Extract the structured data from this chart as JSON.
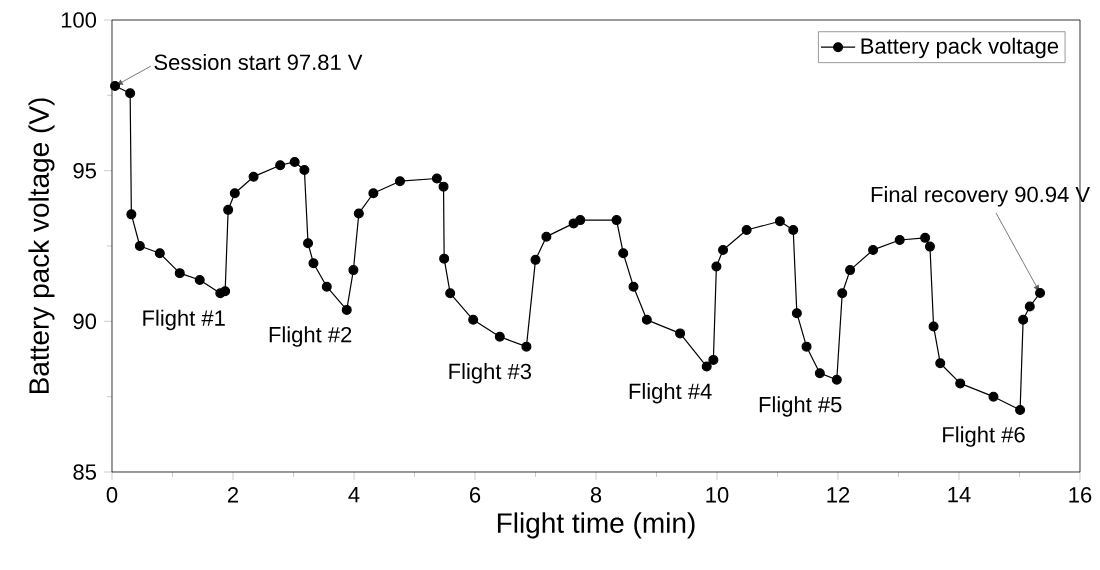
{
  "chart_data": {
    "type": "line",
    "xlabel": "Flight time (min)",
    "ylabel": "Battery pack voltage (V)",
    "xlim": [
      0,
      16
    ],
    "ylim": [
      85,
      100
    ],
    "xticks": [
      0,
      2,
      4,
      6,
      8,
      10,
      12,
      14,
      16
    ],
    "yticks": [
      85,
      90,
      95,
      100
    ],
    "legend": "top right",
    "marker": "circle",
    "line_style": "solid",
    "grid": false,
    "x": [
      0.05,
      0.3,
      0.32,
      0.46,
      0.79,
      1.12,
      1.45,
      1.79,
      1.87,
      1.92,
      2.03,
      2.34,
      2.78,
      3.02,
      3.18,
      3.24,
      3.33,
      3.55,
      3.88,
      3.99,
      4.08,
      4.32,
      4.76,
      5.37,
      5.48,
      5.49,
      5.59,
      5.97,
      6.41,
      6.85,
      7.0,
      7.18,
      7.63,
      7.74,
      8.34,
      8.45,
      8.62,
      8.84,
      9.39,
      9.83,
      9.94,
      9.99,
      10.1,
      10.49,
      11.04,
      11.26,
      11.32,
      11.48,
      11.7,
      11.98,
      12.07,
      12.2,
      12.58,
      13.02,
      13.44,
      13.52,
      13.58,
      13.69,
      14.02,
      14.57,
      15.01,
      15.06,
      15.17,
      15.34
    ],
    "series": [
      {
        "name": "Battery pack voltage",
        "color": "#000000",
        "values": [
          97.81,
          97.57,
          93.55,
          92.5,
          92.26,
          91.6,
          91.37,
          90.93,
          91.0,
          93.7,
          94.25,
          94.8,
          95.18,
          95.29,
          95.02,
          92.59,
          91.93,
          91.15,
          90.38,
          91.7,
          93.58,
          94.25,
          94.65,
          94.74,
          94.47,
          92.08,
          90.93,
          90.05,
          89.49,
          89.16,
          92.04,
          92.81,
          93.25,
          93.36,
          93.36,
          92.26,
          91.15,
          90.05,
          89.6,
          88.5,
          88.72,
          91.82,
          92.37,
          93.03,
          93.32,
          93.03,
          90.27,
          89.16,
          88.28,
          88.06,
          90.93,
          91.7,
          92.37,
          92.7,
          92.77,
          92.48,
          89.83,
          88.61,
          87.94,
          87.5,
          87.06,
          90.05,
          90.49,
          90.94
        ]
      }
    ],
    "annotations": [
      {
        "text": "Session start 97.81 V",
        "x": 0.05,
        "y": 97.81
      },
      {
        "text": "Flight #1",
        "x": 1.79,
        "y": 90.93
      },
      {
        "text": "Flight #2",
        "x": 3.88,
        "y": 90.38
      },
      {
        "text": "Flight #3",
        "x": 6.85,
        "y": 89.16
      },
      {
        "text": "Flight #4",
        "x": 9.83,
        "y": 88.5
      },
      {
        "text": "Flight #5",
        "x": 11.98,
        "y": 88.06
      },
      {
        "text": "Flight #6",
        "x": 15.01,
        "y": 87.06
      },
      {
        "text": "Final recovery 90.94 V",
        "x": 15.34,
        "y": 90.94
      }
    ]
  }
}
